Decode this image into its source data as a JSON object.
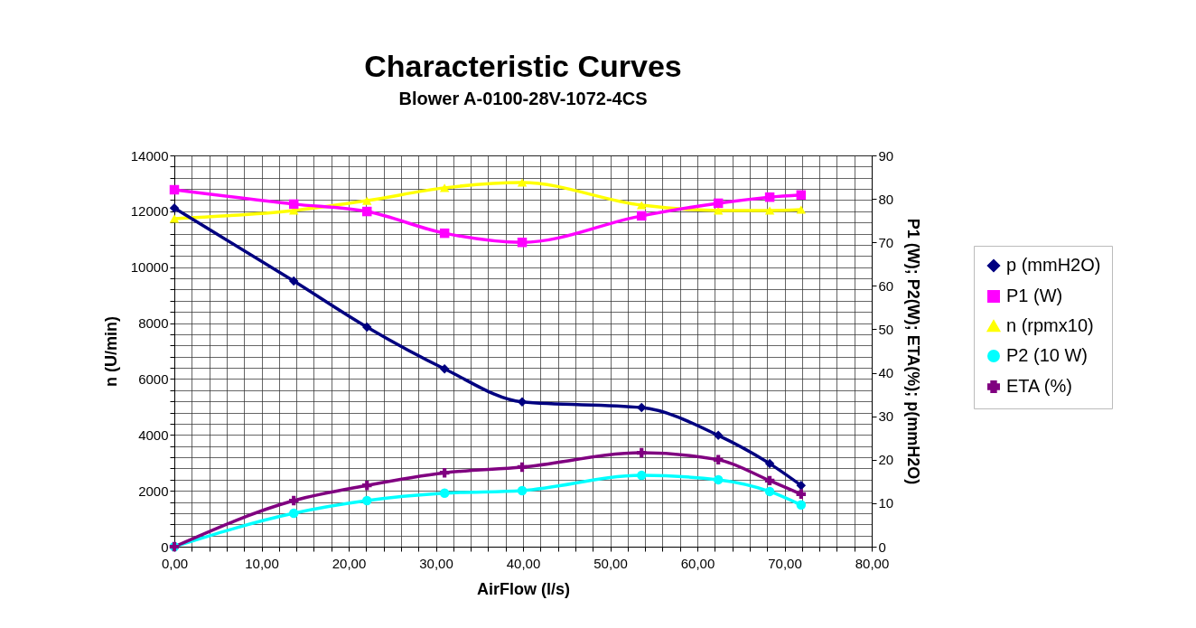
{
  "chart_data": {
    "type": "line",
    "title": "Characteristic Curves",
    "subtitle": "Blower A-0100-28V-1072-4CS",
    "xlabel": "AirFlow  (l/s)",
    "ylabel": "n (U/min)",
    "y2label": "P1 (W); P2(W); ETA(%); p(mmH2O)",
    "x": [
      0,
      13.7,
      22.1,
      31.0,
      39.9,
      53.6,
      62.4,
      68.3,
      71.9
    ],
    "series": [
      {
        "name": "p (mmH2O)",
        "color": "#000080",
        "marker": "diamond",
        "axis": "y2",
        "values": [
          77.9,
          61.1,
          50.5,
          40.9,
          33.3,
          32.0,
          25.6,
          19.1,
          14.1
        ]
      },
      {
        "name": "P1 (W)",
        "color": "#ff00ff",
        "marker": "square",
        "axis": "y2",
        "values": [
          82.1,
          78.8,
          77.1,
          72.1,
          70.0,
          76.1,
          79.0,
          80.4,
          80.9
        ]
      },
      {
        "name": "n (rpmx10)",
        "color": "#ffff00",
        "marker": "triangle",
        "axis": "y",
        "values": [
          11740,
          12030,
          12380,
          12840,
          13030,
          12220,
          12030,
          12030,
          12060
        ]
      },
      {
        "name": "P2 (10 W)",
        "color": "#00ffff",
        "marker": "circle",
        "axis": "y2",
        "values": [
          0,
          7.7,
          10.6,
          12.3,
          12.9,
          16.4,
          15.4,
          12.7,
          9.6
        ]
      },
      {
        "name": "ETA (%)",
        "color": "#800080",
        "marker": "cross",
        "axis": "y2",
        "values": [
          0,
          10.6,
          14.1,
          17.0,
          18.3,
          21.6,
          20.0,
          15.2,
          12.1
        ]
      }
    ],
    "xlim": [
      0,
      80
    ],
    "xticks": [
      {
        "value": 0,
        "label": "0,00"
      },
      {
        "value": 10,
        "label": "10,00"
      },
      {
        "value": 20,
        "label": "20,00"
      },
      {
        "value": 30,
        "label": "30,00"
      },
      {
        "value": 40,
        "label": "40,00"
      },
      {
        "value": 50,
        "label": "50,00"
      },
      {
        "value": 60,
        "label": "60,00"
      },
      {
        "value": 70,
        "label": "70,00"
      },
      {
        "value": 80,
        "label": "80,00"
      }
    ],
    "ylim": [
      0,
      14000
    ],
    "yticks": [
      0,
      2000,
      4000,
      6000,
      8000,
      10000,
      12000,
      14000
    ],
    "y2lim": [
      0,
      90
    ],
    "y2ticks": [
      0,
      10,
      20,
      30,
      40,
      50,
      60,
      70,
      80,
      90
    ],
    "grid": true,
    "legend": "right",
    "line_style": "solid"
  }
}
